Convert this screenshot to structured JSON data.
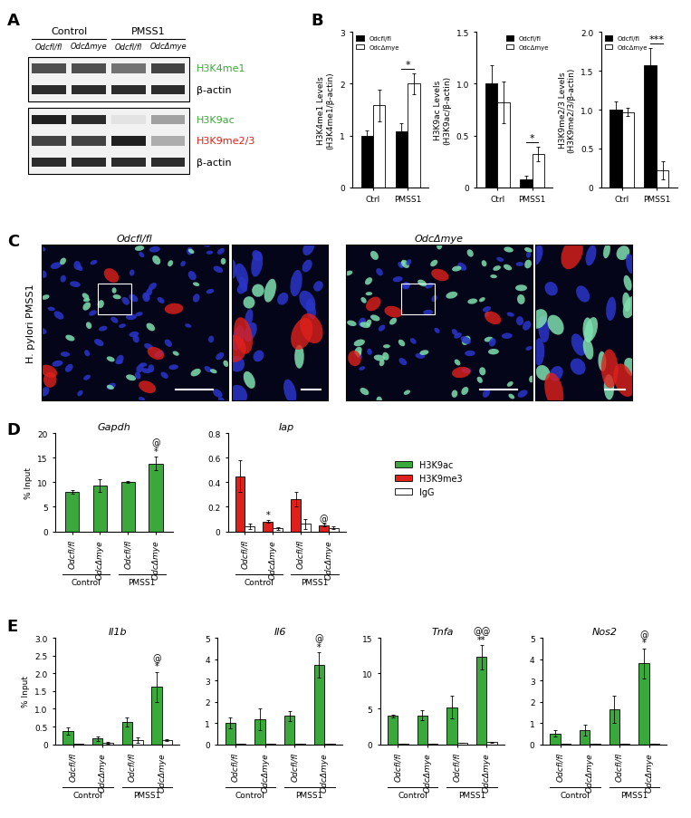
{
  "panel_labels": [
    "A",
    "B",
    "C",
    "D",
    "E"
  ],
  "blot": {
    "groups": [
      {
        "label": "Control",
        "lanes": [
          0,
          1
        ]
      },
      {
        "label": "PMSS1",
        "lanes": [
          2,
          3
        ]
      }
    ],
    "lanes": [
      "Odcfl/fl",
      "OdcΔmye",
      "Odcfl/fl",
      "OdcΔmye"
    ],
    "rows": [
      {
        "label": "H3K4me1",
        "color": "#3aa83a"
      },
      {
        "label": "β-actin",
        "color": "#000000"
      },
      {
        "label": "H3K9ac",
        "color": "#3aa83a"
      },
      {
        "label": "H3K9me2/3",
        "color": "#e0201b"
      },
      {
        "label": "β-actin",
        "color": "#000000"
      }
    ]
  },
  "micrographs": {
    "row_label": "H. pylori PMSS1",
    "panels": [
      "Odcfl/fl",
      "OdcΔmye"
    ]
  },
  "shared_legend": [
    {
      "name": "H3K9ac",
      "color": "#3aa83a"
    },
    {
      "name": "H3K9me3",
      "color": "#e0201b"
    },
    {
      "name": "IgG",
      "color": "#ffffff"
    }
  ],
  "chart_data": [
    {
      "type": "bar",
      "panel": "B",
      "ylabel": "H3K4me1 Levels\n(H3K4me1/β-actin)",
      "categories": [
        "Ctrl",
        "PMSS1"
      ],
      "series": [
        {
          "name": "Odcfl/fl",
          "color": "#000000",
          "values": [
            1.0,
            1.08
          ],
          "errors": [
            0.1,
            0.15
          ]
        },
        {
          "name": "OdcΔmye",
          "color": "#ffffff",
          "values": [
            1.58,
            2.0
          ],
          "errors": [
            0.3,
            0.2
          ]
        }
      ],
      "ylim": [
        0,
        3
      ],
      "yticks": [
        0,
        1,
        2,
        3
      ],
      "legend": "upper left",
      "significance": [
        {
          "category": 1,
          "label": "*"
        }
      ]
    },
    {
      "type": "bar",
      "panel": "B",
      "ylabel": "H3K9ac Levels\n(H3K9ac/β-actin)",
      "categories": [
        "Ctrl",
        "PMSS1"
      ],
      "series": [
        {
          "name": "Odcfl/fl",
          "color": "#000000",
          "values": [
            1.0,
            0.08
          ],
          "errors": [
            0.18,
            0.03
          ]
        },
        {
          "name": "OdcΔmye",
          "color": "#ffffff",
          "values": [
            0.82,
            0.32
          ],
          "errors": [
            0.2,
            0.07
          ]
        }
      ],
      "ylim": [
        0,
        1.5
      ],
      "yticks": [
        0,
        0.5,
        1.0,
        1.5
      ],
      "legend": "upper right",
      "significance": [
        {
          "category": 1,
          "label": "*"
        }
      ]
    },
    {
      "type": "bar",
      "panel": "B",
      "ylabel": "H3K9me2/3 Levels\n(H3K9me2/3/β-actin)",
      "categories": [
        "Ctrl",
        "PMSS1"
      ],
      "series": [
        {
          "name": "Odcfl/fl",
          "color": "#000000",
          "values": [
            1.0,
            1.57
          ],
          "errors": [
            0.1,
            0.22
          ]
        },
        {
          "name": "OdcΔmye",
          "color": "#ffffff",
          "values": [
            0.97,
            0.22
          ],
          "errors": [
            0.05,
            0.12
          ]
        }
      ],
      "ylim": [
        0,
        2
      ],
      "yticks": [
        0,
        0.5,
        1.0,
        1.5,
        2.0
      ],
      "legend": "upper left",
      "significance": [
        {
          "category": 1,
          "label": "***"
        }
      ]
    },
    {
      "type": "bar",
      "panel": "D",
      "title": "Gapdh",
      "ylabel": "% Input",
      "categories": [
        "Odcfl/fl",
        "OdcΔmye",
        "Odcfl/fl",
        "OdcΔmye"
      ],
      "groups": [
        {
          "label": "Control",
          "start": 0,
          "end": 1
        },
        {
          "label": "PMSS1",
          "start": 2,
          "end": 3
        }
      ],
      "series": [
        {
          "name": "H3K9ac",
          "color": "#3aa83a",
          "values": [
            8.0,
            9.3,
            10.0,
            13.8
          ],
          "errors": [
            0.4,
            1.3,
            0.2,
            1.4
          ]
        }
      ],
      "ylim": [
        0,
        20
      ],
      "yticks": [
        0,
        5,
        10,
        15,
        20
      ],
      "marks": [
        {
          "series": "H3K9ac",
          "index": 3,
          "labels": [
            "*",
            "@"
          ]
        }
      ]
    },
    {
      "type": "bar",
      "panel": "D",
      "title": "Iap",
      "categories": [
        "Odcfl/fl",
        "OdcΔmye",
        "Odcfl/fl",
        "OdcΔmye"
      ],
      "groups": [
        {
          "label": "Control",
          "start": 0,
          "end": 1
        },
        {
          "label": "PMSS1",
          "start": 2,
          "end": 3
        }
      ],
      "series": [
        {
          "name": "H3K9me3",
          "color": "#e0201b",
          "values": [
            0.45,
            0.08,
            0.26,
            0.05
          ],
          "errors": [
            0.13,
            0.01,
            0.06,
            0.01
          ]
        },
        {
          "name": "IgG",
          "color": "#ffffff",
          "values": [
            0.04,
            0.025,
            0.06,
            0.03
          ],
          "errors": [
            0.02,
            0.01,
            0.04,
            0.01
          ]
        }
      ],
      "ylim": [
        0,
        0.8
      ],
      "yticks": [
        0,
        0.2,
        0.4,
        0.6,
        0.8
      ],
      "marks": [
        {
          "series": "H3K9me3",
          "index": 1,
          "labels": [
            "*"
          ]
        },
        {
          "series": "H3K9me3",
          "index": 3,
          "labels": [
            "@"
          ]
        }
      ]
    },
    {
      "type": "bar",
      "panel": "E",
      "title": "Il1b",
      "ylabel": "% Input",
      "categories": [
        "Odcfl/fl",
        "OdcΔmye",
        "Odcfl/fl",
        "OdcΔmye"
      ],
      "groups": [
        {
          "label": "Control",
          "start": 0,
          "end": 1
        },
        {
          "label": "PMSS1",
          "start": 2,
          "end": 3
        }
      ],
      "series": [
        {
          "name": "H3K9ac",
          "color": "#3aa83a",
          "values": [
            0.38,
            0.16,
            0.63,
            1.62
          ],
          "errors": [
            0.1,
            0.06,
            0.13,
            0.42
          ]
        },
        {
          "name": "IgG",
          "color": "#ffffff",
          "values": [
            0.01,
            0.04,
            0.12,
            0.12
          ],
          "errors": [
            0.01,
            0.02,
            0.08,
            0.03
          ]
        }
      ],
      "ylim": [
        0,
        3.0
      ],
      "yticks": [
        0,
        0.5,
        1.0,
        1.5,
        2.0,
        2.5,
        3.0
      ],
      "marks": [
        {
          "series": "H3K9ac",
          "index": 3,
          "labels": [
            "*",
            "@"
          ]
        }
      ]
    },
    {
      "type": "bar",
      "panel": "E",
      "title": "Il6",
      "categories": [
        "Odcfl/fl",
        "OdcΔmye",
        "Odcfl/fl",
        "OdcΔmye"
      ],
      "groups": [
        {
          "label": "Control",
          "start": 0,
          "end": 1
        },
        {
          "label": "PMSS1",
          "start": 2,
          "end": 3
        }
      ],
      "series": [
        {
          "name": "H3K9ac",
          "color": "#3aa83a",
          "values": [
            1.0,
            1.18,
            1.33,
            3.72
          ],
          "errors": [
            0.25,
            0.5,
            0.25,
            0.6
          ]
        },
        {
          "name": "IgG",
          "color": "#ffffff",
          "values": [
            0.02,
            0.02,
            0.02,
            0.03
          ],
          "errors": [
            0.01,
            0.01,
            0.01,
            0.01
          ]
        }
      ],
      "ylim": [
        0,
        5
      ],
      "yticks": [
        0,
        1,
        2,
        3,
        4,
        5
      ],
      "marks": [
        {
          "series": "H3K9ac",
          "index": 3,
          "labels": [
            "*",
            "@"
          ]
        }
      ]
    },
    {
      "type": "bar",
      "panel": "E",
      "title": "Tnfa",
      "categories": [
        "Odcfl/fl",
        "OdcΔmye",
        "Odcfl/fl",
        "OdcΔmye"
      ],
      "groups": [
        {
          "label": "Control",
          "start": 0,
          "end": 1
        },
        {
          "label": "PMSS1",
          "start": 2,
          "end": 3
        }
      ],
      "series": [
        {
          "name": "H3K9ac",
          "color": "#3aa83a",
          "values": [
            4.0,
            4.1,
            5.2,
            12.3
          ],
          "errors": [
            0.2,
            0.7,
            1.6,
            1.7
          ]
        },
        {
          "name": "IgG",
          "color": "#ffffff",
          "values": [
            0.1,
            0.05,
            0.2,
            0.3
          ],
          "errors": [
            0.03,
            0.02,
            0.05,
            0.05
          ]
        }
      ],
      "ylim": [
        0,
        15
      ],
      "yticks": [
        0,
        5,
        10,
        15
      ],
      "marks": [
        {
          "series": "H3K9ac",
          "index": 3,
          "labels": [
            "**",
            "@@"
          ]
        }
      ]
    },
    {
      "type": "bar",
      "panel": "E",
      "title": "Nos2",
      "categories": [
        "Odcfl/fl",
        "OdcΔmye",
        "Odcfl/fl",
        "OdcΔmye"
      ],
      "groups": [
        {
          "label": "Control",
          "start": 0,
          "end": 1
        },
        {
          "label": "PMSS1",
          "start": 2,
          "end": 3
        }
      ],
      "series": [
        {
          "name": "H3K9ac",
          "color": "#3aa83a",
          "values": [
            0.5,
            0.68,
            1.65,
            3.8
          ],
          "errors": [
            0.15,
            0.25,
            0.65,
            0.7
          ]
        },
        {
          "name": "IgG",
          "color": "#ffffff",
          "values": [
            0.02,
            0.02,
            0.02,
            0.02
          ],
          "errors": [
            0.01,
            0.01,
            0.01,
            0.01
          ]
        }
      ],
      "ylim": [
        0,
        5
      ],
      "yticks": [
        0,
        1,
        2,
        3,
        4,
        5
      ],
      "marks": [
        {
          "series": "H3K9ac",
          "index": 3,
          "labels": [
            "*",
            "@"
          ]
        }
      ]
    }
  ]
}
